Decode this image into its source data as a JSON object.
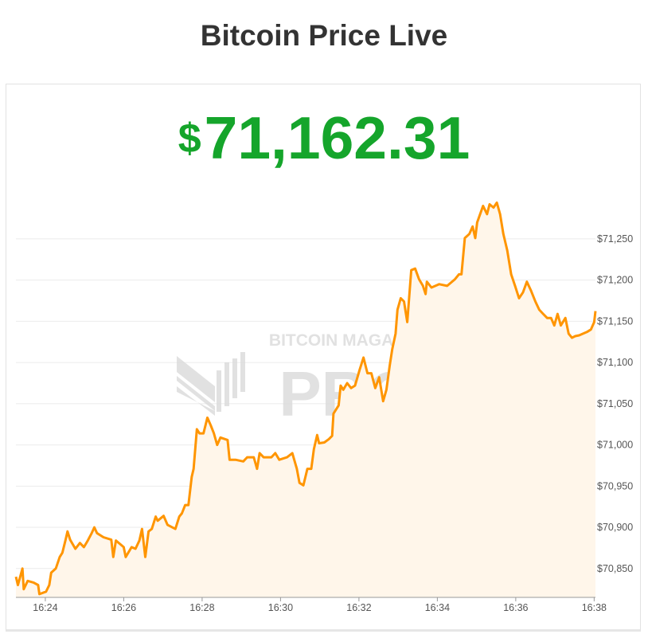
{
  "page": {
    "title": "Bitcoin Price Live"
  },
  "price": {
    "currency_symbol": "$",
    "value": "71,162.31",
    "color": "#15a52b"
  },
  "watermark": {
    "line1": "BITCOIN MAGAZINE",
    "line2": "PRO"
  },
  "chart_data": {
    "type": "area",
    "title": "",
    "xlabel": "",
    "ylabel": "",
    "line_color": "#ff9500",
    "fill_color": "#fff6ea",
    "grid": true,
    "y_axis_position": "right",
    "xlim": [
      "16:23:15",
      "16:38:02"
    ],
    "ylim": [
      70815,
      71305
    ],
    "x_ticks": [
      "16:24",
      "16:26",
      "16:28",
      "16:30",
      "16:32",
      "16:34",
      "16:36",
      "16:38"
    ],
    "y_ticks": [
      70850,
      70900,
      70950,
      71000,
      71050,
      71100,
      71150,
      71200,
      71250
    ],
    "y_tick_labels": [
      "$70,850",
      "$70,900",
      "$70,950",
      "$71,000",
      "$71,050",
      "$71,100",
      "$71,150",
      "$71,200",
      "$71,250"
    ],
    "series": [
      {
        "x": [
          "16:23:15",
          "16:23:18",
          "16:23:25",
          "16:23:27",
          "16:23:33",
          "16:23:42",
          "16:23:49",
          "16:23:51",
          "16:24:01",
          "16:24:06",
          "16:24:09",
          "16:24:16",
          "16:24:22",
          "16:24:26",
          "16:24:31",
          "16:24:34",
          "16:24:38",
          "16:24:46",
          "16:24:53",
          "16:24:59",
          "16:25:05",
          "16:25:11",
          "16:25:15",
          "16:25:19",
          "16:25:29",
          "16:25:41",
          "16:25:44",
          "16:25:48",
          "16:26:00",
          "16:26:03",
          "16:26:12",
          "16:26:18",
          "16:26:24",
          "16:26:28",
          "16:26:33",
          "16:26:38",
          "16:26:43",
          "16:26:49",
          "16:26:52",
          "16:27:01",
          "16:27:07",
          "16:27:19",
          "16:27:25",
          "16:27:29",
          "16:27:34",
          "16:27:39",
          "16:27:44",
          "16:27:47",
          "16:27:52",
          "16:27:56",
          "16:28:02",
          "16:28:08",
          "16:28:13",
          "16:28:18",
          "16:28:23",
          "16:28:28",
          "16:28:39",
          "16:28:42",
          "16:28:51",
          "16:29:03",
          "16:29:09",
          "16:29:19",
          "16:29:24",
          "16:29:28",
          "16:29:34",
          "16:29:46",
          "16:29:52",
          "16:29:58",
          "16:30:10",
          "16:30:18",
          "16:30:25",
          "16:30:29",
          "16:30:35",
          "16:30:41",
          "16:30:47",
          "16:30:51",
          "16:30:56",
          "16:30:59",
          "16:31:07",
          "16:31:14",
          "16:31:19",
          "16:31:21",
          "16:31:29",
          "16:31:32",
          "16:31:36",
          "16:31:42",
          "16:31:48",
          "16:31:54",
          "16:32:01",
          "16:32:07",
          "16:32:13",
          "16:32:19",
          "16:32:25",
          "16:32:31",
          "16:32:37",
          "16:32:42",
          "16:32:47",
          "16:32:51",
          "16:32:56",
          "16:32:59",
          "16:33:04",
          "16:33:09",
          "16:33:14",
          "16:33:20",
          "16:33:26",
          "16:33:32",
          "16:33:38",
          "16:33:42",
          "16:33:44",
          "16:33:51",
          "16:34:03",
          "16:34:15",
          "16:34:27",
          "16:34:33",
          "16:34:37",
          "16:34:42",
          "16:34:49",
          "16:34:54",
          "16:34:58",
          "16:35:01",
          "16:35:10",
          "16:35:16",
          "16:35:20",
          "16:35:26",
          "16:35:31",
          "16:35:36",
          "16:35:41",
          "16:35:47",
          "16:35:53",
          "16:35:59",
          "16:36:05",
          "16:36:11",
          "16:36:17",
          "16:36:23",
          "16:36:30",
          "16:36:36",
          "16:36:42",
          "16:36:48",
          "16:36:54",
          "16:36:59",
          "16:37:04",
          "16:37:09",
          "16:37:16",
          "16:37:21",
          "16:37:26",
          "16:37:31",
          "16:37:37",
          "16:37:43",
          "16:37:49",
          "16:37:55",
          "16:38:00",
          "16:38:02"
        ],
        "y": [
          70840,
          70830,
          70850,
          70825,
          70835,
          70833,
          70830,
          70819,
          70822,
          70830,
          70845,
          70850,
          70864,
          70869,
          70885,
          70895,
          70885,
          70874,
          70881,
          70876,
          70884,
          70893,
          70900,
          70893,
          70888,
          70885,
          70864,
          70884,
          70876,
          70864,
          70876,
          70874,
          70884,
          70898,
          70864,
          70895,
          70898,
          70913,
          70908,
          70914,
          70903,
          70898,
          70913,
          70917,
          70927,
          70927,
          70961,
          70971,
          71019,
          71014,
          71014,
          71033,
          71024,
          71014,
          71000,
          71009,
          71006,
          70982,
          70982,
          70980,
          70985,
          70985,
          70971,
          70990,
          70985,
          70985,
          70990,
          70982,
          70985,
          70990,
          70971,
          70954,
          70951,
          70971,
          70971,
          70995,
          71012,
          71002,
          71003,
          71007,
          71011,
          71038,
          71048,
          71072,
          71067,
          71075,
          71069,
          71072,
          71091,
          71106,
          71087,
          71087,
          71069,
          71082,
          71053,
          71067,
          71096,
          71116,
          71135,
          71164,
          71178,
          71174,
          71149,
          71212,
          71214,
          71201,
          71193,
          71183,
          71198,
          71191,
          71195,
          71193,
          71201,
          71207,
          71207,
          71251,
          71256,
          71265,
          71251,
          71270,
          71290,
          71280,
          71292,
          71288,
          71294,
          71280,
          71256,
          71236,
          71207,
          71193,
          71178,
          71185,
          71198,
          71188,
          71174,
          71164,
          71159,
          71154,
          71154,
          71145,
          71159,
          71145,
          71154,
          71135,
          71130,
          71132,
          71133,
          71135,
          71137,
          71140,
          71149,
          71162.31
        ]
      }
    ]
  }
}
